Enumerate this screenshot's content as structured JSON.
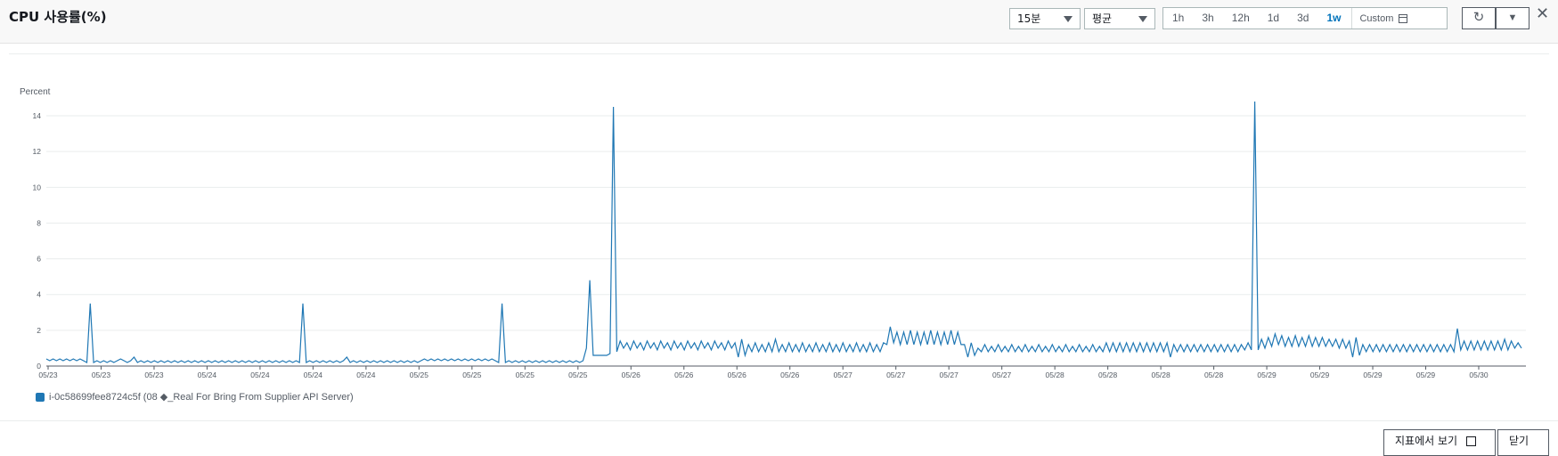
{
  "header": {
    "title": "CPU 사용률(%)",
    "period_select": "15분",
    "stat_select": "평균",
    "ranges": [
      "1h",
      "3h",
      "12h",
      "1d",
      "3d",
      "1w"
    ],
    "active_range": "1w",
    "custom_label": "Custom",
    "refresh_icon": "refresh-icon",
    "dropdown_icon": "caret-down-icon",
    "close_icon": "close-icon"
  },
  "footer": {
    "view_in_metrics_label": "지표에서 보기",
    "close_label": "닫기"
  },
  "colors": {
    "series": "#1f77b4",
    "accent": "#0073bb"
  },
  "chart_data": {
    "type": "line",
    "ylabel": "Percent",
    "ylim": [
      0,
      14.7
    ],
    "yticks": [
      0,
      2,
      4,
      6,
      8,
      10,
      12,
      14
    ],
    "xticks": [
      "05/23",
      "05/23",
      "05/23",
      "05/24",
      "05/24",
      "05/24",
      "05/24",
      "05/25",
      "05/25",
      "05/25",
      "05/25",
      "05/26",
      "05/26",
      "05/26",
      "05/26",
      "05/27",
      "05/27",
      "05/27",
      "05/27",
      "05/28",
      "05/28",
      "05/28",
      "05/28",
      "05/29",
      "05/29",
      "05/29",
      "05/29",
      "05/30"
    ],
    "grid": true,
    "legend_position": "bottom-left",
    "series": [
      {
        "name": "i-0c58699fee8724c5f (08 ◆_Real For Bring From Supplier API Server)",
        "x_range": [
          "05/23",
          "05/30"
        ],
        "values": [
          0.4,
          0.3,
          0.4,
          0.3,
          0.4,
          0.3,
          0.4,
          0.3,
          0.4,
          0.3,
          0.4,
          0.3,
          0.2,
          3.5,
          0.2,
          0.3,
          0.2,
          0.3,
          0.2,
          0.3,
          0.2,
          0.3,
          0.4,
          0.3,
          0.2,
          0.3,
          0.5,
          0.2,
          0.3,
          0.2,
          0.3,
          0.2,
          0.3,
          0.2,
          0.3,
          0.2,
          0.3,
          0.2,
          0.3,
          0.2,
          0.3,
          0.2,
          0.3,
          0.2,
          0.3,
          0.2,
          0.3,
          0.2,
          0.3,
          0.2,
          0.3,
          0.2,
          0.3,
          0.2,
          0.3,
          0.2,
          0.3,
          0.2,
          0.3,
          0.2,
          0.3,
          0.2,
          0.3,
          0.2,
          0.3,
          0.2,
          0.3,
          0.2,
          0.3,
          0.2,
          0.3,
          0.2,
          0.3,
          0.2,
          0.3,
          0.2,
          3.5,
          0.2,
          0.3,
          0.2,
          0.3,
          0.2,
          0.3,
          0.2,
          0.3,
          0.2,
          0.3,
          0.2,
          0.3,
          0.5,
          0.2,
          0.3,
          0.2,
          0.3,
          0.2,
          0.3,
          0.2,
          0.3,
          0.2,
          0.3,
          0.2,
          0.3,
          0.2,
          0.3,
          0.2,
          0.3,
          0.2,
          0.3,
          0.2,
          0.3,
          0.2,
          0.3,
          0.4,
          0.3,
          0.4,
          0.3,
          0.4,
          0.3,
          0.4,
          0.3,
          0.4,
          0.3,
          0.4,
          0.3,
          0.4,
          0.3,
          0.4,
          0.3,
          0.4,
          0.3,
          0.4,
          0.3,
          0.4,
          0.3,
          0.2,
          3.5,
          0.2,
          0.3,
          0.2,
          0.3,
          0.2,
          0.3,
          0.2,
          0.3,
          0.2,
          0.3,
          0.2,
          0.3,
          0.2,
          0.3,
          0.2,
          0.3,
          0.2,
          0.3,
          0.2,
          0.3,
          0.2,
          0.3,
          0.2,
          0.3,
          1.0,
          4.8,
          0.6,
          0.6,
          0.6,
          0.6,
          0.6,
          0.7,
          14.5,
          0.8,
          1.4,
          1.0,
          1.3,
          0.9,
          1.4,
          1.0,
          1.3,
          0.9,
          1.4,
          1.0,
          1.3,
          0.9,
          1.4,
          1.0,
          1.3,
          0.9,
          1.4,
          1.0,
          1.3,
          0.9,
          1.4,
          1.0,
          1.3,
          0.9,
          1.4,
          1.0,
          1.3,
          0.9,
          1.4,
          1.0,
          1.3,
          0.9,
          1.4,
          1.0,
          1.3,
          0.5,
          1.5,
          0.6,
          1.2,
          0.8,
          1.3,
          0.8,
          1.2,
          0.8,
          1.3,
          0.8,
          1.5,
          0.8,
          1.2,
          0.8,
          1.3,
          0.8,
          1.2,
          0.8,
          1.3,
          0.8,
          1.2,
          0.8,
          1.3,
          0.8,
          1.2,
          0.8,
          1.3,
          0.8,
          1.2,
          0.8,
          1.3,
          0.8,
          1.2,
          0.8,
          1.3,
          0.8,
          1.2,
          0.8,
          1.3,
          0.8,
          1.2,
          0.8,
          1.3,
          1.2,
          2.2,
          1.3,
          1.9,
          1.2,
          1.9,
          1.2,
          2.0,
          1.2,
          1.9,
          1.2,
          1.9,
          1.2,
          2.0,
          1.2,
          1.9,
          1.2,
          1.9,
          1.2,
          2.0,
          1.2,
          1.9,
          1.2,
          1.2,
          0.5,
          1.3,
          0.6,
          1.0,
          0.8,
          1.2,
          0.8,
          1.1,
          0.8,
          1.2,
          0.8,
          1.1,
          0.8,
          1.2,
          0.8,
          1.1,
          0.8,
          1.2,
          0.8,
          1.1,
          0.8,
          1.2,
          0.8,
          1.1,
          0.8,
          1.2,
          0.8,
          1.1,
          0.8,
          1.2,
          0.8,
          1.1,
          0.8,
          1.2,
          0.8,
          1.1,
          0.8,
          1.2,
          0.8,
          1.1,
          0.8,
          1.3,
          0.8,
          1.3,
          0.8,
          1.3,
          0.8,
          1.3,
          0.8,
          1.3,
          0.8,
          1.3,
          0.8,
          1.3,
          0.8,
          1.3,
          0.8,
          1.3,
          0.8,
          1.3,
          0.5,
          1.2,
          0.8,
          1.2,
          0.8,
          1.2,
          0.8,
          1.2,
          0.8,
          1.2,
          0.8,
          1.2,
          0.8,
          1.2,
          0.8,
          1.2,
          0.8,
          1.2,
          0.8,
          1.2,
          0.8,
          1.2,
          0.9,
          1.3,
          0.9,
          14.8,
          0.9,
          1.5,
          1.0,
          1.6,
          1.1,
          1.8,
          1.2,
          1.7,
          1.1,
          1.6,
          1.1,
          1.7,
          1.1,
          1.6,
          1.1,
          1.7,
          1.1,
          1.6,
          1.1,
          1.6,
          1.1,
          1.5,
          1.1,
          1.5,
          1.0,
          1.5,
          1.0,
          1.4,
          0.5,
          1.6,
          0.6,
          1.2,
          0.8,
          1.2,
          0.8,
          1.2,
          0.8,
          1.2,
          0.8,
          1.2,
          0.8,
          1.2,
          0.8,
          1.2,
          0.8,
          1.2,
          0.8,
          1.2,
          0.8,
          1.2,
          0.8,
          1.2,
          0.8,
          1.2,
          0.8,
          1.2,
          0.8,
          1.2,
          0.8,
          2.1,
          0.9,
          1.4,
          0.9,
          1.4,
          0.9,
          1.4,
          0.9,
          1.4,
          0.9,
          1.4,
          0.9,
          1.4,
          0.9,
          1.5,
          0.9,
          1.4,
          1.0,
          1.3,
          1.0
        ]
      }
    ]
  }
}
